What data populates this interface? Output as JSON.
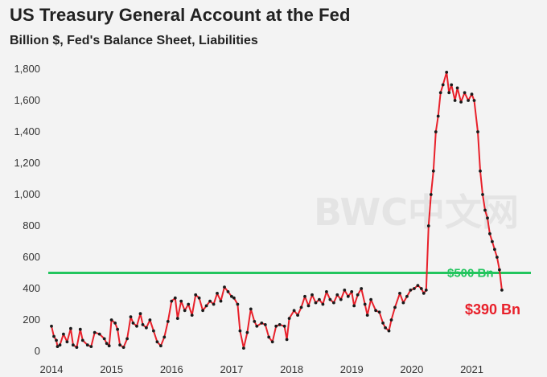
{
  "title": "US Treasury General Account at the Fed",
  "subtitle": "Billion $, Fed's Balance Sheet, Liabilities",
  "watermark": "BWC中文网",
  "colors": {
    "line": "#e8202a",
    "points": "#1a1a1a",
    "threshold": "#22c55e",
    "last_label": "#e8202a",
    "background": "#f3f3f3"
  },
  "chart_data": {
    "type": "line",
    "title": "US Treasury General Account at the Fed",
    "subtitle": "Billion $, Fed's Balance Sheet, Liabilities",
    "xlabel": "",
    "ylabel": "",
    "xlim": [
      2014.0,
      2021.85
    ],
    "ylim": [
      0,
      1800
    ],
    "x_ticks": [
      2014,
      2015,
      2016,
      2017,
      2018,
      2019,
      2020,
      2021
    ],
    "y_ticks": [
      {
        "value": 0,
        "label": "0"
      },
      {
        "value": 200,
        "label": "200"
      },
      {
        "value": 400,
        "label": "400"
      },
      {
        "value": 600,
        "label": "600"
      },
      {
        "value": 800,
        "label": "800"
      },
      {
        "value": 1000,
        "label": "1,000"
      },
      {
        "value": 1200,
        "label": "1,200"
      },
      {
        "value": 1400,
        "label": "1,400"
      },
      {
        "value": 1600,
        "label": "1,600"
      },
      {
        "value": 1800,
        "label": "1,800"
      }
    ],
    "threshold": {
      "value": 500,
      "label": "$500 Bn"
    },
    "last_value_label": "$390 Bn",
    "series": [
      {
        "name": "Treasury General Account",
        "points": [
          [
            2014.0,
            160
          ],
          [
            2014.04,
            95
          ],
          [
            2014.08,
            70
          ],
          [
            2014.1,
            30
          ],
          [
            2014.14,
            40
          ],
          [
            2014.2,
            110
          ],
          [
            2014.26,
            60
          ],
          [
            2014.32,
            145
          ],
          [
            2014.36,
            40
          ],
          [
            2014.42,
            25
          ],
          [
            2014.48,
            140
          ],
          [
            2014.52,
            70
          ],
          [
            2014.6,
            40
          ],
          [
            2014.66,
            30
          ],
          [
            2014.72,
            120
          ],
          [
            2014.8,
            110
          ],
          [
            2014.88,
            80
          ],
          [
            2014.92,
            50
          ],
          [
            2014.96,
            35
          ],
          [
            2015.0,
            200
          ],
          [
            2015.06,
            180
          ],
          [
            2015.1,
            140
          ],
          [
            2015.14,
            40
          ],
          [
            2015.2,
            25
          ],
          [
            2015.26,
            80
          ],
          [
            2015.32,
            220
          ],
          [
            2015.36,
            180
          ],
          [
            2015.42,
            160
          ],
          [
            2015.48,
            240
          ],
          [
            2015.52,
            170
          ],
          [
            2015.58,
            150
          ],
          [
            2015.64,
            200
          ],
          [
            2015.7,
            130
          ],
          [
            2015.76,
            60
          ],
          [
            2015.82,
            35
          ],
          [
            2015.88,
            90
          ],
          [
            2015.94,
            190
          ],
          [
            2016.0,
            320
          ],
          [
            2016.06,
            340
          ],
          [
            2016.1,
            210
          ],
          [
            2016.16,
            320
          ],
          [
            2016.22,
            260
          ],
          [
            2016.28,
            300
          ],
          [
            2016.34,
            230
          ],
          [
            2016.4,
            360
          ],
          [
            2016.46,
            340
          ],
          [
            2016.52,
            260
          ],
          [
            2016.58,
            290
          ],
          [
            2016.64,
            320
          ],
          [
            2016.7,
            300
          ],
          [
            2016.76,
            370
          ],
          [
            2016.82,
            320
          ],
          [
            2016.88,
            410
          ],
          [
            2016.94,
            380
          ],
          [
            2017.0,
            350
          ],
          [
            2017.04,
            340
          ],
          [
            2017.1,
            300
          ],
          [
            2017.14,
            130
          ],
          [
            2017.2,
            20
          ],
          [
            2017.26,
            120
          ],
          [
            2017.32,
            270
          ],
          [
            2017.38,
            190
          ],
          [
            2017.42,
            160
          ],
          [
            2017.5,
            180
          ],
          [
            2017.56,
            170
          ],
          [
            2017.62,
            90
          ],
          [
            2017.68,
            60
          ],
          [
            2017.74,
            160
          ],
          [
            2017.8,
            170
          ],
          [
            2017.88,
            160
          ],
          [
            2017.92,
            75
          ],
          [
            2017.96,
            210
          ],
          [
            2018.04,
            260
          ],
          [
            2018.1,
            230
          ],
          [
            2018.16,
            280
          ],
          [
            2018.22,
            350
          ],
          [
            2018.28,
            290
          ],
          [
            2018.34,
            360
          ],
          [
            2018.4,
            310
          ],
          [
            2018.46,
            330
          ],
          [
            2018.52,
            300
          ],
          [
            2018.58,
            380
          ],
          [
            2018.64,
            330
          ],
          [
            2018.7,
            310
          ],
          [
            2018.76,
            360
          ],
          [
            2018.82,
            330
          ],
          [
            2018.88,
            390
          ],
          [
            2018.94,
            350
          ],
          [
            2019.0,
            380
          ],
          [
            2019.04,
            290
          ],
          [
            2019.1,
            360
          ],
          [
            2019.16,
            400
          ],
          [
            2019.22,
            300
          ],
          [
            2019.26,
            230
          ],
          [
            2019.32,
            330
          ],
          [
            2019.4,
            260
          ],
          [
            2019.46,
            250
          ],
          [
            2019.52,
            180
          ],
          [
            2019.56,
            150
          ],
          [
            2019.62,
            130
          ],
          [
            2019.66,
            200
          ],
          [
            2019.72,
            280
          ],
          [
            2019.8,
            370
          ],
          [
            2019.86,
            310
          ],
          [
            2019.92,
            350
          ],
          [
            2019.98,
            390
          ],
          [
            2020.04,
            400
          ],
          [
            2020.1,
            420
          ],
          [
            2020.16,
            400
          ],
          [
            2020.2,
            370
          ],
          [
            2020.24,
            390
          ],
          [
            2020.28,
            800
          ],
          [
            2020.32,
            1000
          ],
          [
            2020.36,
            1150
          ],
          [
            2020.4,
            1400
          ],
          [
            2020.44,
            1500
          ],
          [
            2020.48,
            1650
          ],
          [
            2020.52,
            1700
          ],
          [
            2020.58,
            1780
          ],
          [
            2020.62,
            1650
          ],
          [
            2020.66,
            1700
          ],
          [
            2020.72,
            1600
          ],
          [
            2020.76,
            1680
          ],
          [
            2020.82,
            1590
          ],
          [
            2020.88,
            1650
          ],
          [
            2020.94,
            1600
          ],
          [
            2021.0,
            1640
          ],
          [
            2021.04,
            1600
          ],
          [
            2021.1,
            1400
          ],
          [
            2021.14,
            1150
          ],
          [
            2021.18,
            1000
          ],
          [
            2021.22,
            900
          ],
          [
            2021.26,
            850
          ],
          [
            2021.3,
            750
          ],
          [
            2021.34,
            700
          ],
          [
            2021.38,
            650
          ],
          [
            2021.42,
            600
          ],
          [
            2021.46,
            520
          ],
          [
            2021.5,
            390
          ]
        ]
      }
    ]
  }
}
